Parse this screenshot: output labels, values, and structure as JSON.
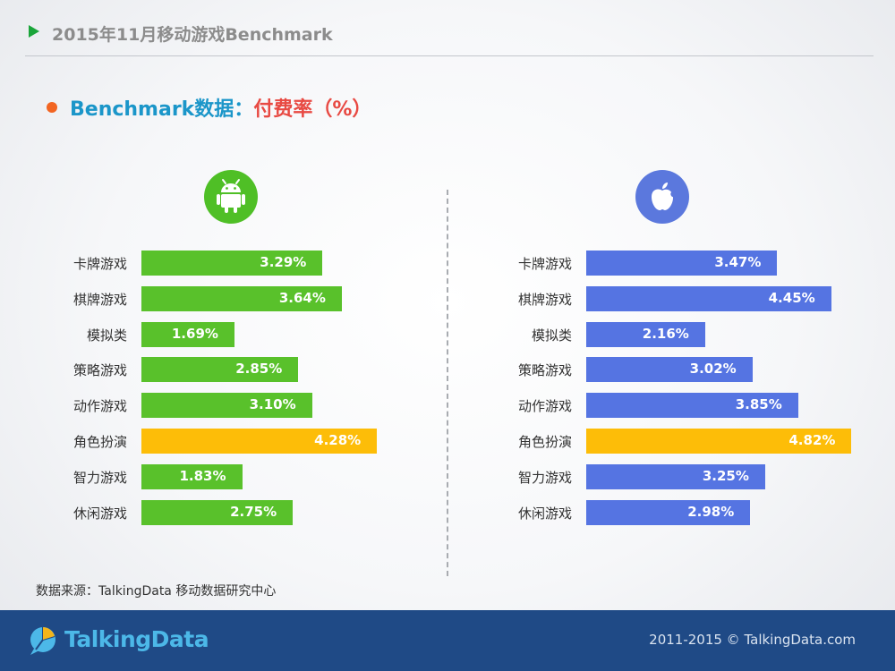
{
  "header": {
    "title": "2015年11月移动游戏Benchmark"
  },
  "subtitle": {
    "part1": "Benchmark数据：",
    "part2": "付费率（%）"
  },
  "platforms": [
    {
      "icon": "android-icon",
      "color": "#4fbf26"
    },
    {
      "icon": "apple-icon",
      "color": "#5b78dd"
    }
  ],
  "colors": {
    "android": "#59c12b",
    "ios": "#5574e2",
    "highlight": "#fdbd08"
  },
  "chart_data": [
    {
      "type": "bar",
      "orientation": "horizontal",
      "platform": "Android",
      "categories": [
        "卡牌游戏",
        "棋牌游戏",
        "模拟类",
        "策略游戏",
        "动作游戏",
        "角色扮演",
        "智力游戏",
        "休闲游戏"
      ],
      "values": [
        3.29,
        3.64,
        1.69,
        2.85,
        3.1,
        4.28,
        1.83,
        2.75
      ],
      "labels": [
        "3.29%",
        "3.64%",
        "1.69%",
        "2.85%",
        "3.10%",
        "4.28%",
        "1.83%",
        "2.75%"
      ],
      "highlight_index": 5,
      "unit": "%",
      "grid": false
    },
    {
      "type": "bar",
      "orientation": "horizontal",
      "platform": "iOS",
      "categories": [
        "卡牌游戏",
        "棋牌游戏",
        "模拟类",
        "策略游戏",
        "动作游戏",
        "角色扮演",
        "智力游戏",
        "休闲游戏"
      ],
      "values": [
        3.47,
        4.45,
        2.16,
        3.02,
        3.85,
        4.82,
        3.25,
        2.98
      ],
      "labels": [
        "3.47%",
        "4.45%",
        "2.16%",
        "3.02%",
        "3.85%",
        "4.82%",
        "3.25%",
        "2.98%"
      ],
      "highlight_index": 5,
      "unit": "%",
      "grid": false
    }
  ],
  "source": "数据来源：TalkingData 移动数据研究中心",
  "footer": {
    "brand": "TalkingData",
    "copyright": "2011-2015 © TalkingData.com"
  }
}
